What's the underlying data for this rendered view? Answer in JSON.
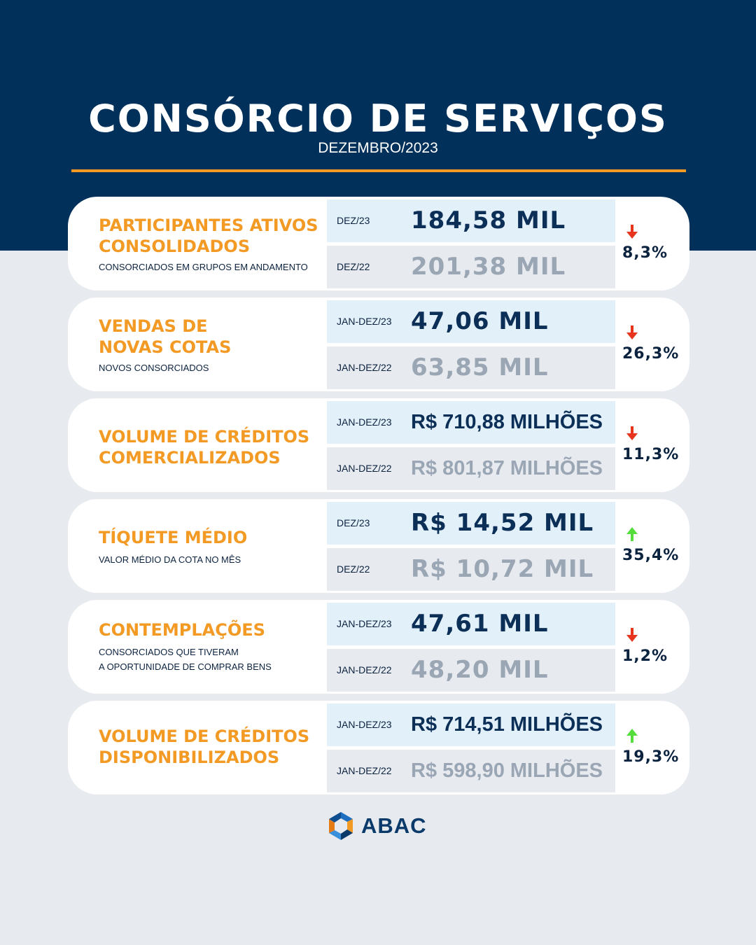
{
  "header": {
    "title": "CONSÓRCIO DE SERVIÇOS",
    "subtitle": "DEZEMBRO/2023"
  },
  "colors": {
    "navy": "#01305a",
    "orange": "#f39a25",
    "down": "#e8341c",
    "up": "#55dd3c"
  },
  "cards": [
    {
      "title": "PARTICIPANTES ATIVOS\nCONSOLIDADOS",
      "description": "CONSORCIADOS EM GRUPOS EM ANDAMENTO",
      "current": {
        "period": "DEZ/23",
        "value": "184,58 MIL"
      },
      "previous": {
        "period": "DEZ/22",
        "value": "201,38 MIL"
      },
      "trend": "down",
      "change": "8,3%"
    },
    {
      "title": "VENDAS DE\nNOVAS COTAS",
      "description": "NOVOS CONSORCIADOS",
      "current": {
        "period": "JAN-DEZ/23",
        "value": "47,06 MIL"
      },
      "previous": {
        "period": "JAN-DEZ/22",
        "value": "63,85 MIL"
      },
      "trend": "down",
      "change": "26,3%"
    },
    {
      "title": "VOLUME DE CRÉDITOS\nCOMERCIALIZADOS",
      "description": "",
      "current": {
        "period": "JAN-DEZ/23",
        "value": "R$ 710,88 MILHÕES"
      },
      "previous": {
        "period": "JAN-DEZ/22",
        "value": "R$ 801,87 MILHÕES"
      },
      "trend": "down",
      "change": "11,3%"
    },
    {
      "title": "TÍQUETE MÉDIO",
      "description": "VALOR MÉDIO DA COTA NO MÊS",
      "current": {
        "period": "DEZ/23",
        "value": "R$ 14,52 MIL"
      },
      "previous": {
        "period": "DEZ/22",
        "value": "R$ 10,72 MIL"
      },
      "trend": "up",
      "change": "35,4%"
    },
    {
      "title": "CONTEMPLAÇÕES",
      "description": "CONSORCIADOS QUE TIVERAM\nA OPORTUNIDADE DE COMPRAR BENS",
      "current": {
        "period": "JAN-DEZ/23",
        "value": "47,61 MIL"
      },
      "previous": {
        "period": "JAN-DEZ/22",
        "value": "48,20 MIL"
      },
      "trend": "down",
      "change": "1,2%"
    },
    {
      "title": "VOLUME DE CRÉDITOS\nDISPONIBILIZADOS",
      "description": "",
      "current": {
        "period": "JAN-DEZ/23",
        "value": "R$ 714,51 MILHÕES"
      },
      "previous": {
        "period": "JAN-DEZ/22",
        "value": "R$ 598,90 MILHÕES"
      },
      "trend": "up",
      "change": "19,3%"
    }
  ],
  "footer": {
    "logo_text": "ABAC",
    "logo_icon": "abac-logo-icon"
  }
}
